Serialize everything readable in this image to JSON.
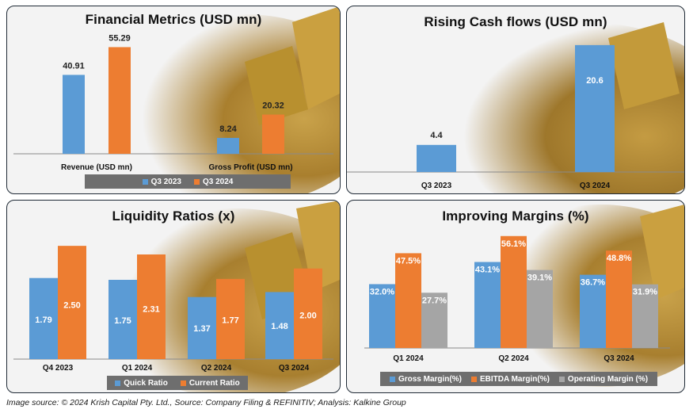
{
  "colors": {
    "blue": "#5b9bd5",
    "orange": "#ed7d31",
    "gray": "#a5a5a5"
  },
  "footer": "Image source: © 2024 Krish Capital Pty. Ltd., Source: Company Filing & REFINITIV; Analysis: Kalkine Group",
  "chart_data": [
    {
      "type": "bar",
      "title": "Financial Metrics (USD mn)",
      "categories": [
        "Revenue (USD mn)",
        "Gross Profit (USD mn)"
      ],
      "series": [
        {
          "name": "Q3 2023",
          "values": [
            40.91,
            8.24
          ],
          "labels": [
            "40.91",
            "8.24"
          ]
        },
        {
          "name": "Q3 2024",
          "values": [
            55.29,
            20.32
          ],
          "labels": [
            "55.29",
            "20.32"
          ]
        }
      ],
      "ylim": [
        0,
        60
      ],
      "grid": false,
      "legend": "bottom"
    },
    {
      "type": "bar",
      "title": "Rising Cash flows (USD mn)",
      "categories": [
        "Q3 2023",
        "Q3 2024"
      ],
      "values": [
        4.4,
        20.6
      ],
      "labels": [
        "4.4",
        "20.6"
      ],
      "ylim": [
        0,
        22
      ],
      "grid": false
    },
    {
      "type": "bar",
      "title": "Liquidity Ratios (x)",
      "categories": [
        "Q4 2023",
        "Q1 2024",
        "Q2 2024",
        "Q3 2024"
      ],
      "series": [
        {
          "name": "Quick Ratio",
          "values": [
            1.79,
            1.75,
            1.37,
            1.48
          ],
          "labels": [
            "1.79",
            "1.75",
            "1.37",
            "1.48"
          ]
        },
        {
          "name": "Current Ratio",
          "values": [
            2.5,
            2.31,
            1.77,
            2.0
          ],
          "labels": [
            "2.50",
            "2.31",
            "1.77",
            "2.00"
          ]
        }
      ],
      "ylim": [
        0,
        2.8
      ],
      "grid": false,
      "legend": "bottom"
    },
    {
      "type": "bar",
      "title": "Improving Margins (%)",
      "categories": [
        "Q1 2024",
        "Q2 2024",
        "Q3 2024"
      ],
      "series": [
        {
          "name": "Gross Margin(%)",
          "values": [
            32.0,
            43.1,
            36.7
          ],
          "labels": [
            "32.0%",
            "43.1%",
            "36.7%"
          ]
        },
        {
          "name": "EBITDA Margin(%)",
          "values": [
            47.5,
            56.1,
            48.8
          ],
          "labels": [
            "47.5%",
            "56.1%",
            "48.8%"
          ]
        },
        {
          "name": "Operating  Margin (%)",
          "values": [
            27.7,
            39.1,
            31.9
          ],
          "labels": [
            "27.7%",
            "39.1%",
            "31.9%"
          ]
        }
      ],
      "ylim": [
        0,
        58
      ],
      "grid": false,
      "legend": "bottom"
    }
  ]
}
